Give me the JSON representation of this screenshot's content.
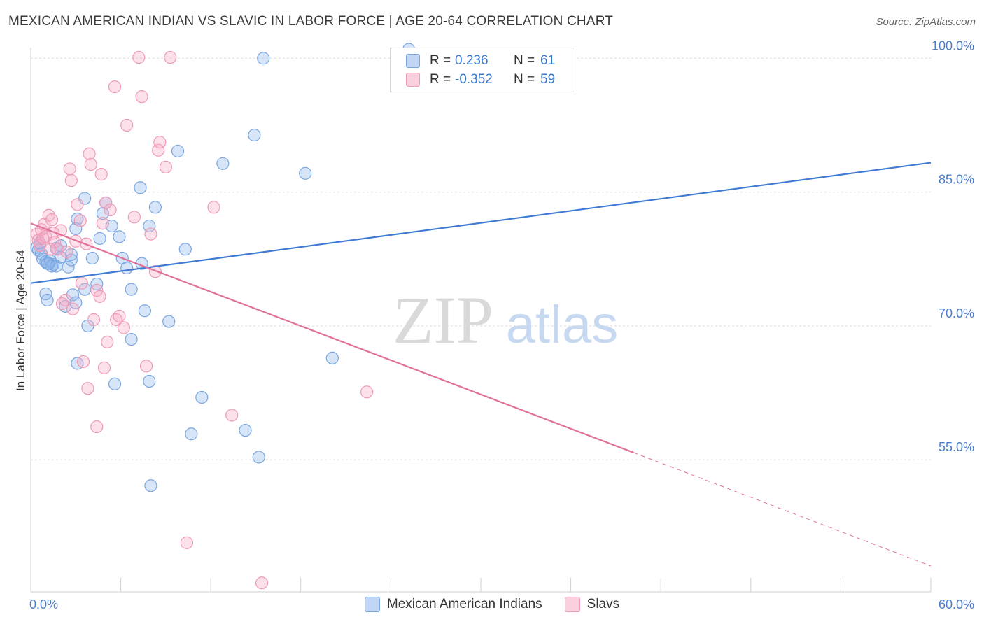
{
  "header": {
    "title": "MEXICAN AMERICAN INDIAN VS SLAVIC IN LABOR FORCE | AGE 20-64 CORRELATION CHART",
    "source": "Source: ZipAtlas.com"
  },
  "watermark": {
    "zip": "ZIP",
    "atlas": "atlas"
  },
  "colors": {
    "blue": "#3f7ad4",
    "blue_fill": "rgba(140,180,235,0.35)",
    "blue_stroke": "#7aa6e0",
    "pink": "#e0719a",
    "pink_fill": "rgba(245,170,195,0.35)",
    "pink_stroke": "#ee9ab8",
    "grid": "#dcdcdc",
    "axis": "#cfcfcf",
    "tick_text": "#4a7cc8"
  },
  "legend": {
    "rows": [
      {
        "r_label": "R =",
        "r_value": "0.236",
        "n_label": "N =",
        "n_value": "61"
      },
      {
        "r_label": "R =",
        "r_value": "-0.352",
        "n_label": "N =",
        "n_value": "59"
      }
    ]
  },
  "chart_data": {
    "type": "scatter",
    "title": "MEXICAN AMERICAN INDIAN VS SLAVIC IN LABOR FORCE | AGE 20-64 CORRELATION CHART",
    "xlabel": "",
    "ylabel": "In Labor Force | Age 20-64",
    "xlim": [
      0,
      60
    ],
    "ylim": [
      40.2,
      101.2
    ],
    "x_tick_labels": [
      {
        "value": 0,
        "label": "0.0%"
      },
      {
        "value": 60,
        "label": "60.0%"
      }
    ],
    "y_ticks": [
      {
        "value": 55,
        "label": "55.0%"
      },
      {
        "value": 70,
        "label": "70.0%"
      },
      {
        "value": 85,
        "label": "85.0%"
      },
      {
        "value": 100,
        "label": "100.0%"
      }
    ],
    "grid": true,
    "legend_position": "bottom-center",
    "series": [
      {
        "name": "Mexican American Indians",
        "color": "blue",
        "points": [
          [
            0.4,
            78.8
          ],
          [
            0.5,
            78.5
          ],
          [
            0.6,
            79.3
          ],
          [
            0.7,
            78.1
          ],
          [
            0.8,
            77.5
          ],
          [
            1.0,
            77.2
          ],
          [
            1.1,
            77.0
          ],
          [
            1.3,
            77.3
          ],
          [
            1.5,
            76.9
          ],
          [
            1.7,
            78.7
          ],
          [
            1.0,
            73.6
          ],
          [
            1.1,
            72.9
          ],
          [
            1.4,
            76.7
          ],
          [
            1.7,
            76.7
          ],
          [
            2.0,
            79.0
          ],
          [
            2.0,
            77.7
          ],
          [
            2.3,
            72.2
          ],
          [
            2.5,
            76.6
          ],
          [
            2.7,
            78.0
          ],
          [
            2.7,
            77.4
          ],
          [
            2.8,
            73.5
          ],
          [
            3.0,
            72.6
          ],
          [
            3.1,
            65.8
          ],
          [
            3.0,
            80.9
          ],
          [
            3.1,
            82.0
          ],
          [
            3.6,
            74.1
          ],
          [
            3.6,
            84.3
          ],
          [
            3.8,
            70.0
          ],
          [
            4.1,
            77.6
          ],
          [
            4.4,
            74.7
          ],
          [
            4.6,
            79.8
          ],
          [
            4.8,
            82.6
          ],
          [
            5.0,
            83.8
          ],
          [
            5.4,
            81.2
          ],
          [
            5.6,
            63.5
          ],
          [
            5.9,
            80.0
          ],
          [
            6.1,
            77.6
          ],
          [
            6.4,
            76.5
          ],
          [
            6.7,
            68.5
          ],
          [
            6.7,
            74.1
          ],
          [
            7.3,
            85.5
          ],
          [
            7.4,
            77.0
          ],
          [
            7.6,
            71.7
          ],
          [
            7.9,
            63.8
          ],
          [
            8.0,
            52.1
          ],
          [
            8.3,
            83.3
          ],
          [
            9.2,
            70.5
          ],
          [
            9.8,
            89.6
          ],
          [
            10.3,
            78.6
          ],
          [
            10.7,
            57.9
          ],
          [
            11.4,
            62.0
          ],
          [
            12.8,
            88.2
          ],
          [
            14.3,
            58.3
          ],
          [
            14.9,
            91.4
          ],
          [
            15.2,
            55.3
          ],
          [
            15.5,
            100.0
          ],
          [
            18.3,
            87.1
          ],
          [
            20.1,
            66.4
          ],
          [
            25.2,
            101.0
          ],
          [
            1.2,
            77.0
          ],
          [
            7.9,
            81.2
          ]
        ]
      },
      {
        "name": "Slavs",
        "color": "pink",
        "points": [
          [
            0.4,
            80.3
          ],
          [
            0.5,
            79.6
          ],
          [
            0.6,
            79.0
          ],
          [
            0.7,
            80.8
          ],
          [
            0.8,
            79.8
          ],
          [
            0.9,
            81.4
          ],
          [
            1.0,
            80.0
          ],
          [
            1.2,
            82.4
          ],
          [
            1.3,
            78.6
          ],
          [
            1.4,
            81.9
          ],
          [
            1.5,
            80.4
          ],
          [
            1.6,
            79.4
          ],
          [
            1.8,
            78.6
          ],
          [
            2.0,
            80.7
          ],
          [
            2.1,
            72.5
          ],
          [
            2.3,
            72.9
          ],
          [
            2.4,
            78.3
          ],
          [
            2.6,
            87.6
          ],
          [
            2.7,
            86.3
          ],
          [
            2.8,
            71.9
          ],
          [
            3.0,
            79.5
          ],
          [
            3.1,
            83.6
          ],
          [
            3.3,
            81.8
          ],
          [
            3.4,
            74.8
          ],
          [
            3.5,
            66.0
          ],
          [
            3.7,
            79.2
          ],
          [
            3.8,
            63.0
          ],
          [
            3.9,
            89.3
          ],
          [
            4.0,
            88.1
          ],
          [
            4.2,
            70.7
          ],
          [
            4.4,
            58.7
          ],
          [
            4.4,
            74.0
          ],
          [
            4.6,
            73.3
          ],
          [
            4.8,
            81.5
          ],
          [
            4.9,
            65.3
          ],
          [
            5.0,
            83.8
          ],
          [
            5.1,
            68.2
          ],
          [
            5.3,
            83.0
          ],
          [
            5.6,
            96.8
          ],
          [
            5.7,
            70.7
          ],
          [
            5.9,
            71.1
          ],
          [
            6.2,
            69.8
          ],
          [
            6.4,
            92.5
          ],
          [
            6.9,
            82.2
          ],
          [
            7.2,
            100.1
          ],
          [
            7.4,
            95.7
          ],
          [
            7.7,
            65.5
          ],
          [
            8.0,
            80.3
          ],
          [
            8.3,
            76.1
          ],
          [
            8.5,
            89.7
          ],
          [
            8.6,
            90.6
          ],
          [
            9.0,
            87.8
          ],
          [
            9.3,
            100.1
          ],
          [
            10.4,
            45.7
          ],
          [
            12.2,
            83.3
          ],
          [
            13.4,
            60.0
          ],
          [
            15.4,
            41.2
          ],
          [
            22.4,
            62.6
          ],
          [
            4.7,
            87.0
          ]
        ]
      }
    ],
    "trend_lines": [
      {
        "series": "Mexican American Indians",
        "x": [
          0,
          60
        ],
        "y": [
          74.8,
          88.3
        ],
        "style": "solid"
      },
      {
        "series": "Slavs",
        "x": [
          0,
          40.2
        ],
        "y": [
          81.5,
          55.8
        ],
        "style": "solid"
      },
      {
        "series": "Slavs",
        "x": [
          40.2,
          60
        ],
        "y": [
          55.8,
          43.1
        ],
        "style": "dashed"
      }
    ]
  }
}
